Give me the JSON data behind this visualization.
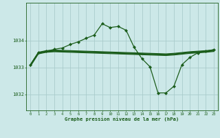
{
  "background_color": "#cce8e8",
  "grid_color": "#aacccc",
  "line_color": "#1a5c1a",
  "xlim": [
    -0.5,
    23.5
  ],
  "ylim": [
    1031.4,
    1035.4
  ],
  "yticks": [
    1032,
    1033,
    1034
  ],
  "xticks": [
    0,
    1,
    2,
    3,
    4,
    5,
    6,
    7,
    8,
    9,
    10,
    11,
    12,
    13,
    14,
    15,
    16,
    17,
    18,
    19,
    20,
    21,
    22,
    23
  ],
  "xlabel": "Graphe pression niveau de la mer (hPa)",
  "x": [
    0,
    1,
    2,
    3,
    4,
    5,
    6,
    7,
    8,
    9,
    10,
    11,
    12,
    13,
    14,
    15,
    16,
    17,
    18,
    19,
    20,
    21,
    22,
    23
  ],
  "y_main": [
    1033.1,
    1033.55,
    1033.6,
    1033.67,
    1033.72,
    1033.85,
    1033.95,
    1034.08,
    1034.2,
    1034.62,
    1034.48,
    1034.52,
    1034.38,
    1033.75,
    1033.32,
    1033.02,
    1032.05,
    1032.05,
    1032.3,
    1033.1,
    1033.37,
    1033.54,
    1033.6,
    1033.66
  ],
  "y_flat1": [
    1033.1,
    1033.56,
    1033.62,
    1033.64,
    1033.63,
    1033.62,
    1033.61,
    1033.6,
    1033.59,
    1033.58,
    1033.57,
    1033.56,
    1033.55,
    1033.54,
    1033.53,
    1033.52,
    1033.51,
    1033.5,
    1033.52,
    1033.55,
    1033.58,
    1033.6,
    1033.62,
    1033.65
  ],
  "y_flat2": [
    1033.08,
    1033.54,
    1033.6,
    1033.62,
    1033.61,
    1033.6,
    1033.59,
    1033.58,
    1033.57,
    1033.56,
    1033.55,
    1033.54,
    1033.53,
    1033.52,
    1033.51,
    1033.5,
    1033.49,
    1033.48,
    1033.5,
    1033.53,
    1033.56,
    1033.58,
    1033.6,
    1033.63
  ],
  "y_flat3": [
    1033.06,
    1033.52,
    1033.58,
    1033.6,
    1033.59,
    1033.58,
    1033.57,
    1033.56,
    1033.55,
    1033.54,
    1033.53,
    1033.52,
    1033.51,
    1033.5,
    1033.49,
    1033.48,
    1033.47,
    1033.46,
    1033.48,
    1033.51,
    1033.54,
    1033.56,
    1033.58,
    1033.61
  ],
  "y_flat4": [
    1033.04,
    1033.5,
    1033.56,
    1033.58,
    1033.57,
    1033.56,
    1033.55,
    1033.54,
    1033.53,
    1033.52,
    1033.51,
    1033.5,
    1033.49,
    1033.48,
    1033.47,
    1033.46,
    1033.45,
    1033.44,
    1033.46,
    1033.49,
    1033.52,
    1033.54,
    1033.56,
    1033.59
  ]
}
